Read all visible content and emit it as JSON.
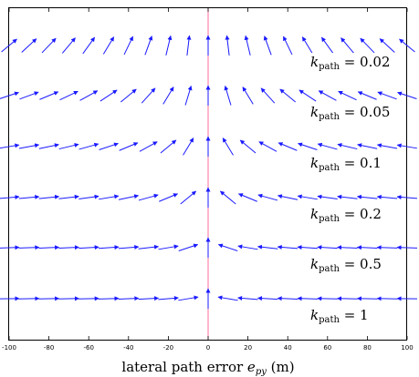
{
  "chart_data": {
    "type": "vector-field",
    "xlabel": "lateral path error e_py (m)",
    "xlabel_parts": {
      "main": "lateral path error ",
      "symbol": "e",
      "sub": "py",
      "unit": " (m)"
    },
    "xlim": [
      -100,
      100
    ],
    "xticks": [
      -100,
      -80,
      -60,
      -40,
      -20,
      0,
      20,
      40,
      60,
      80,
      100
    ],
    "grid": false,
    "reference_line": {
      "x": 0,
      "color": "#ff6b9d"
    },
    "arrow_color": "#1a1aff",
    "x_positions": [
      -100,
      -90,
      -80,
      -70,
      -60,
      -50,
      -40,
      -30,
      -20,
      -10,
      0,
      10,
      20,
      30,
      40,
      50,
      60,
      70,
      80,
      90,
      100
    ],
    "series": [
      {
        "k_path": "0.02",
        "label_sym": "k",
        "label_sub": "path",
        "label_rest": " = 0.02"
      },
      {
        "k_path": "0.05",
        "label_sym": "k",
        "label_sub": "path",
        "label_rest": " = 0.05"
      },
      {
        "k_path": "0.1",
        "label_sym": "k",
        "label_sub": "path",
        "label_rest": " = 0.1"
      },
      {
        "k_path": "0.2",
        "label_sym": "k",
        "label_sub": "path",
        "label_rest": " = 0.2"
      },
      {
        "k_path": "0.5",
        "label_sym": "k",
        "label_sub": "path",
        "label_rest": " = 0.5"
      },
      {
        "k_path": "1",
        "label_sym": "k",
        "label_sub": "path",
        "label_rest": " = 1"
      }
    ]
  }
}
